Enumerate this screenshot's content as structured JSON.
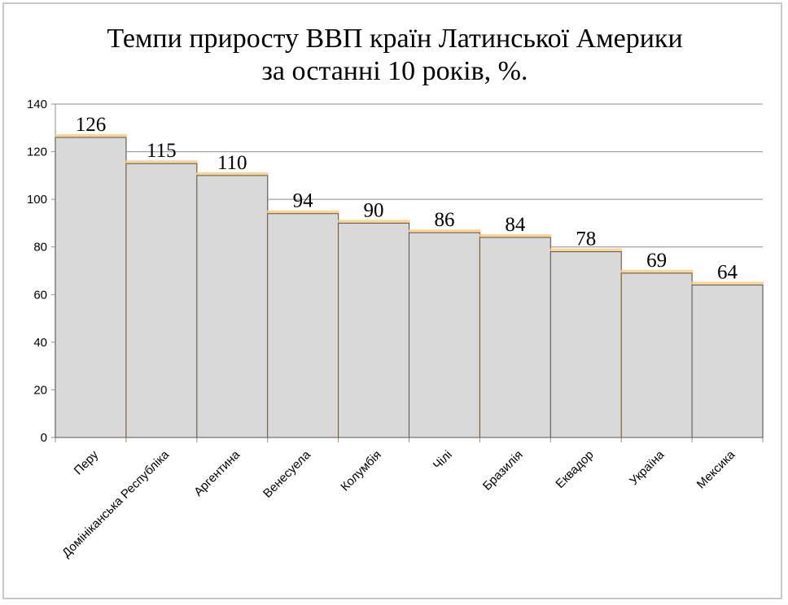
{
  "chart_data": {
    "type": "bar",
    "title_line1": "Темпи приросту ВВП країн Латинської Америки",
    "title_line2": "за останні 10 років, %.",
    "categories": [
      "Перу",
      "Домініканська Республіка",
      "Аргентина",
      "Венесуела",
      "Колумбія",
      "Чілі",
      "Бразилія",
      "Еквадор",
      "Україна",
      "Мексика"
    ],
    "values": [
      126,
      115,
      110,
      94,
      90,
      86,
      84,
      78,
      69,
      64
    ],
    "ylim": [
      0,
      140
    ],
    "yticks": [
      0,
      20,
      40,
      60,
      80,
      100,
      120,
      140
    ],
    "grid": true,
    "legend": "none",
    "colors": {
      "bar": "#d9d9d9",
      "bar_edge": "#555555",
      "glow": "#fbc97a",
      "grid": "#8c8c8c"
    }
  }
}
